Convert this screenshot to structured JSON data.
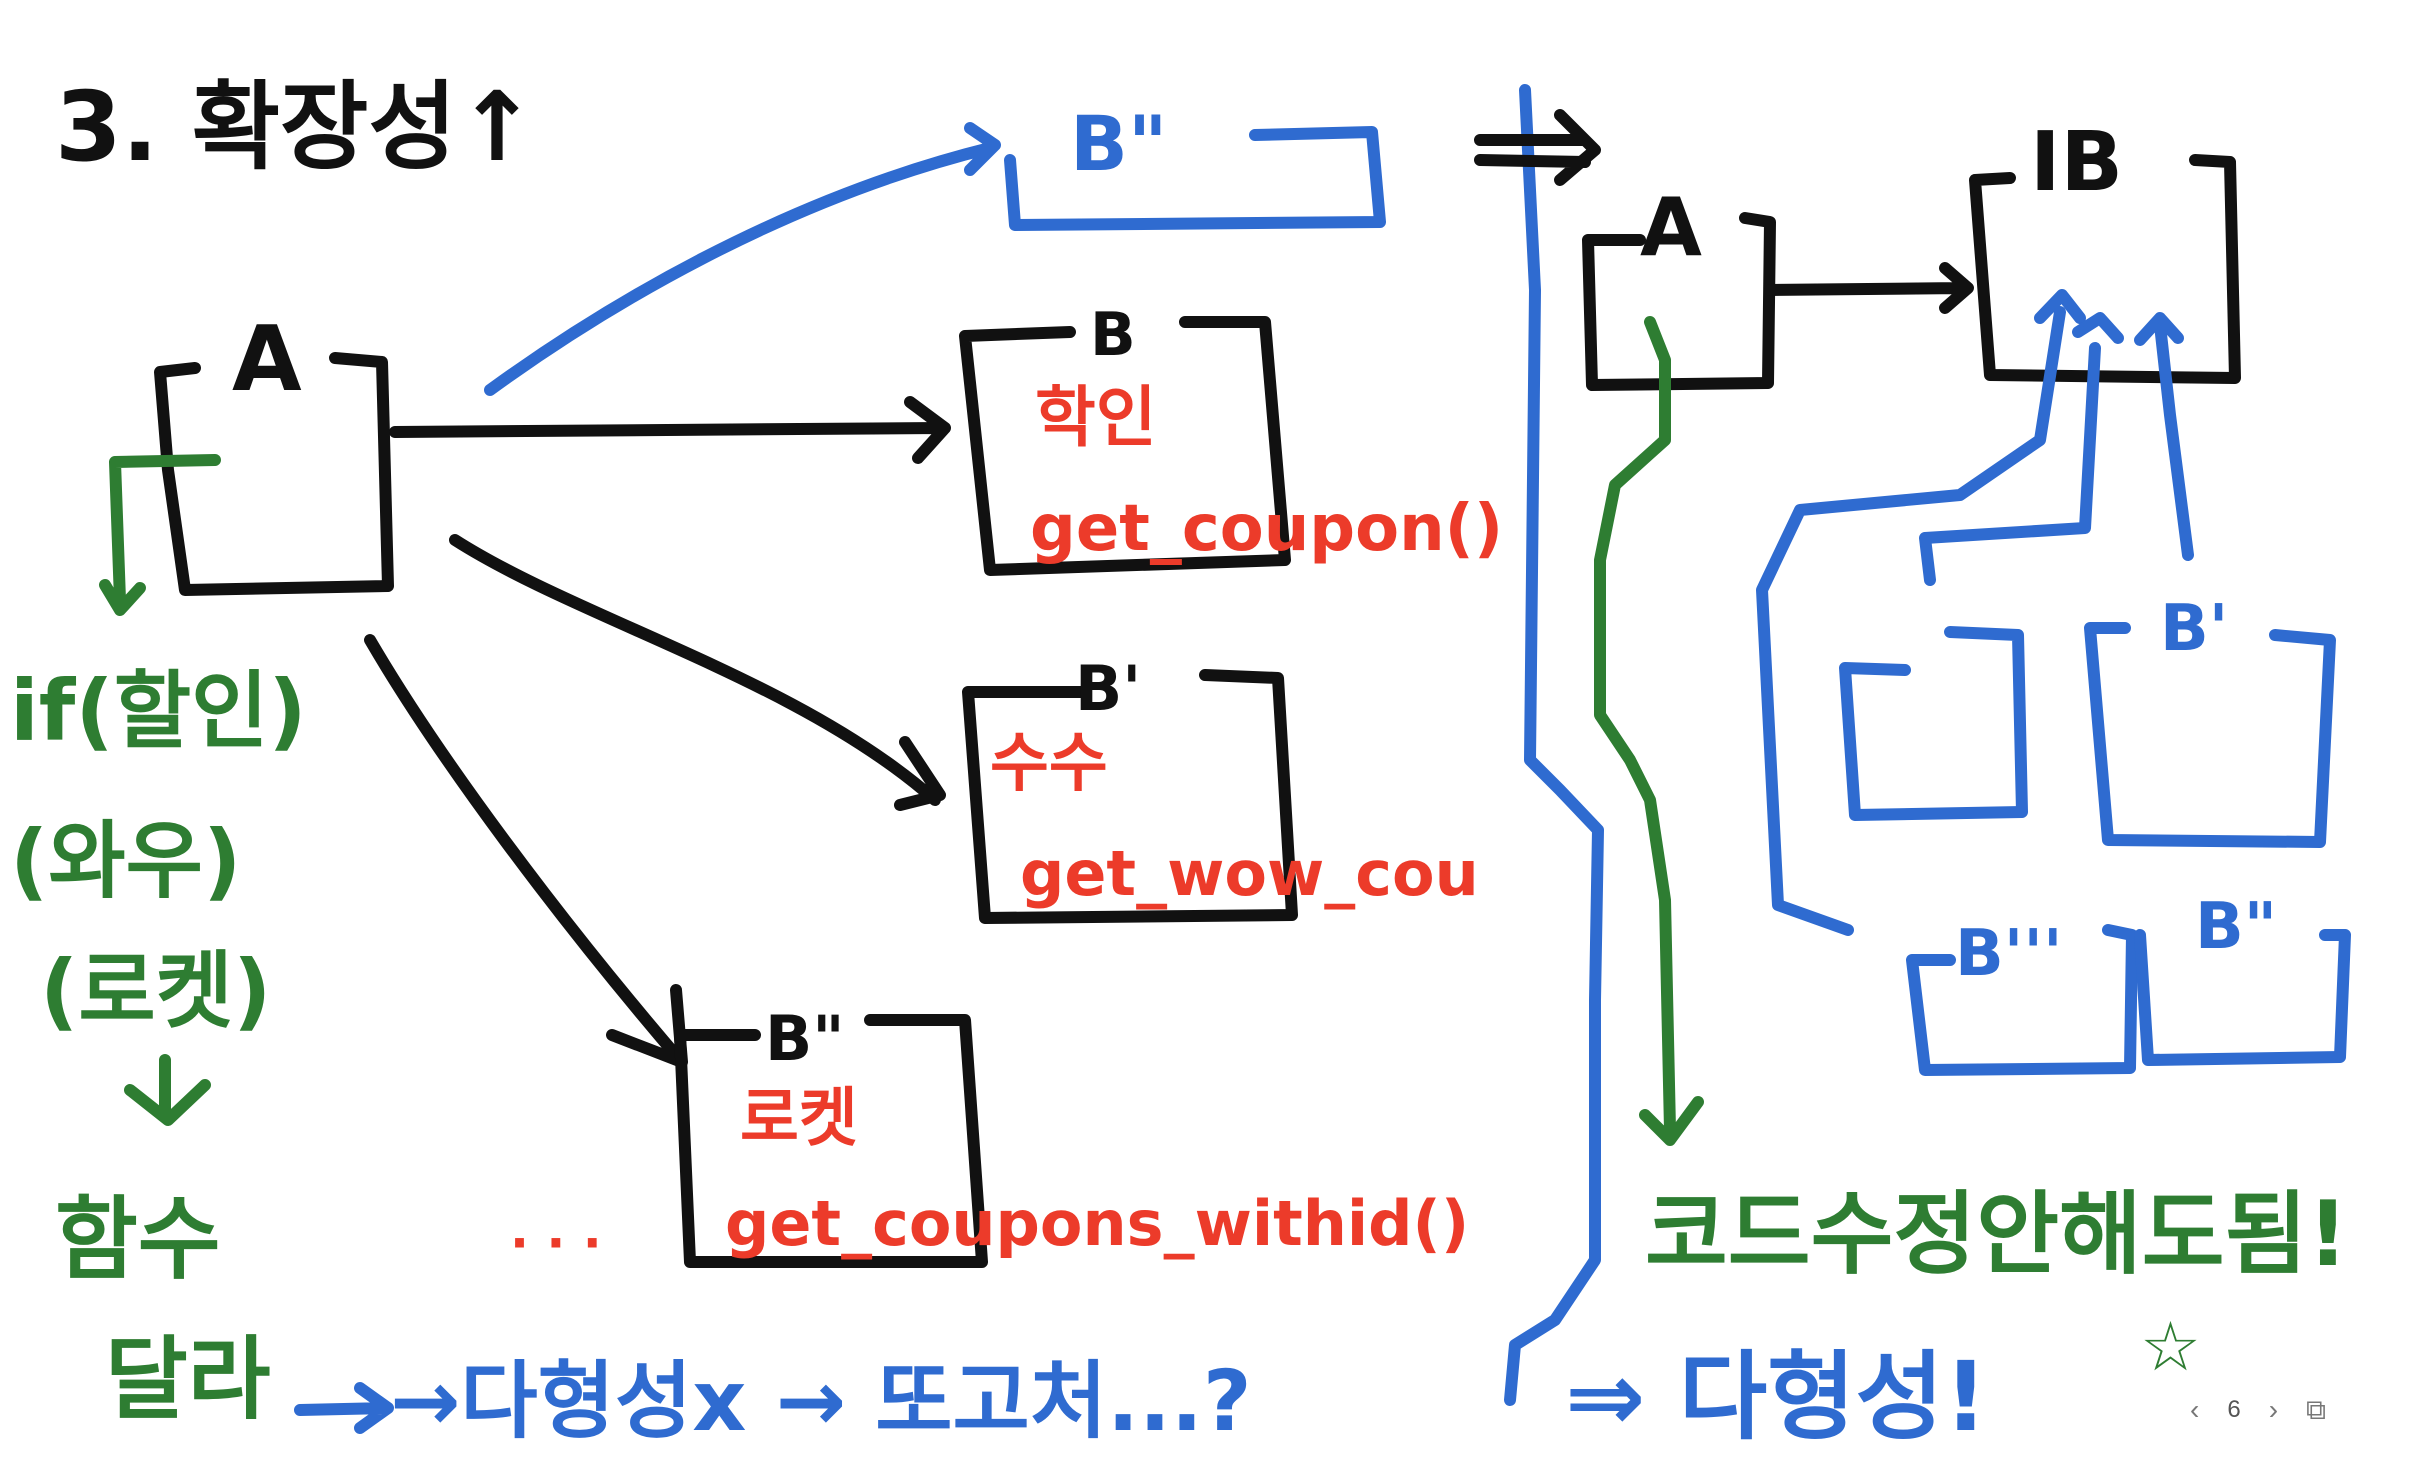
{
  "title": "3. 확장성↑",
  "colors": {
    "black": "#111111",
    "blue": "#2f6bd0",
    "green": "#2e7d32",
    "red": "#ec3b2a"
  },
  "left": {
    "box_a": "A",
    "box_b": {
      "label": "B",
      "note1": "학인",
      "note2": "get_coupon()"
    },
    "box_b1": {
      "label": "B'",
      "note1": "수수",
      "note2": "get_wow_cou"
    },
    "box_b2": {
      "label": "B\"",
      "note1": "로켓",
      "note2": "get_coupons_withid()"
    },
    "box_b3": {
      "label": "B\""
    },
    "ellipsis": "· · ·",
    "green_lines": [
      "if(할인)",
      "(와우)",
      "(로켓)",
      "↓",
      "함수",
      "달라"
    ],
    "blue_line": "→다형성x → 또고처...?"
  },
  "right": {
    "arrow_top": "⇒",
    "box_a": "A",
    "box_ib": "IB",
    "box_b1": "B'",
    "box_b2": "B\"",
    "box_b3": "B'''",
    "green_text": "코드수정안해도됨!",
    "blue_text": "⇒ 다형성!",
    "star": "☆"
  },
  "pager": {
    "prev": "‹",
    "page": "6",
    "next": "›",
    "add": "⧉"
  }
}
